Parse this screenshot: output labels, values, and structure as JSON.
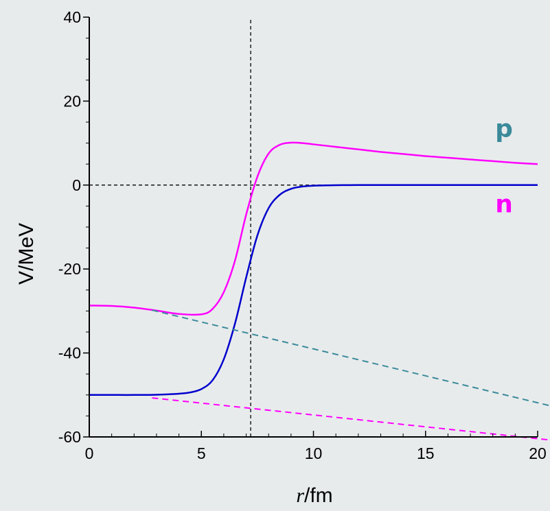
{
  "chart_data": {
    "type": "line",
    "xlabel": {
      "italic": "r",
      "rest": "/fm"
    },
    "ylabel": "V/MeV",
    "xlim": [
      0,
      20
    ],
    "ylim": [
      -60,
      40
    ],
    "xticks": [
      0,
      5,
      10,
      15,
      20
    ],
    "yticks": [
      -60,
      -40,
      -20,
      0,
      20,
      40
    ],
    "colors": {
      "p": "#ff00ff",
      "n": "#0000cc",
      "p_dash": "#ff00ff",
      "n_dash": "#3a8a9a",
      "ref": "#000000"
    },
    "series": [
      {
        "x": [
          0,
          1,
          2,
          3,
          4,
          5,
          5.5,
          6,
          6.5,
          7,
          7.5,
          8,
          8.5,
          9,
          9.5,
          10,
          11,
          12,
          13,
          14,
          15,
          16,
          17,
          18,
          19,
          20
        ],
        "y": [
          -28.7,
          -28.8,
          -29.2,
          -29.9,
          -30.7,
          -30.8,
          -29.5,
          -25.5,
          -18.0,
          -7.0,
          2.0,
          7.5,
          9.6,
          10.1,
          10.0,
          9.7,
          9.1,
          8.5,
          7.9,
          7.4,
          6.9,
          6.5,
          6.1,
          5.7,
          5.3,
          5.0
        ]
      },
      {
        "x": [
          0,
          1,
          2,
          3,
          4,
          4.5,
          5,
          5.5,
          6,
          6.5,
          7,
          7.5,
          8,
          8.5,
          9,
          9.5,
          10,
          11,
          12,
          14,
          16,
          18,
          20
        ],
        "y": [
          -50,
          -50,
          -50,
          -49.95,
          -49.7,
          -49.4,
          -48.6,
          -46.5,
          -41.5,
          -33.0,
          -22.0,
          -12.0,
          -5.5,
          -2.3,
          -0.9,
          -0.35,
          -0.15,
          -0.03,
          0,
          0,
          0,
          0,
          0
        ]
      },
      {
        "x": [
          2.8,
          20.5
        ],
        "y": [
          -50.7,
          -60.7
        ]
      },
      {
        "x": [
          2.8,
          20.5
        ],
        "y": [
          -29.8,
          -52.5
        ]
      },
      {
        "x": [
          7.2,
          7.2
        ],
        "y": [
          -60,
          40
        ]
      },
      {
        "x": [
          0,
          20
        ],
        "y": [
          0,
          0
        ]
      }
    ],
    "annotations": [
      {
        "text": "p",
        "x": 18.5,
        "y": 11.5,
        "color": "#3a8a9a"
      },
      {
        "text": "n",
        "x": 18.5,
        "y": -6.5,
        "color": "#ff00ff"
      }
    ]
  }
}
